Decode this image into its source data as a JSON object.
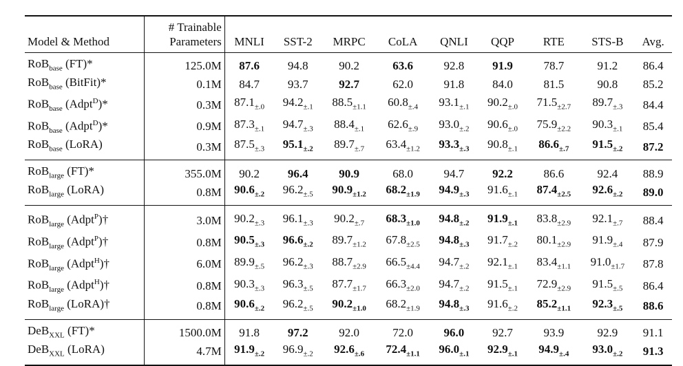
{
  "table": {
    "header": {
      "model": "Model & Method",
      "params": [
        "# Trainable",
        "Parameters"
      ],
      "tasks": [
        "MNLI",
        "SST-2",
        "MRPC",
        "CoLA",
        "QNLI",
        "QQP",
        "RTE",
        "STS-B",
        "Avg."
      ]
    },
    "groups": [
      [
        {
          "model": [
            {
              "t": "RoB"
            },
            {
              "t": "base",
              "s": "sub"
            },
            {
              "t": " (FT)*"
            }
          ],
          "params": "125.0M",
          "cells": [
            {
              "v": "87.6",
              "b": true
            },
            {
              "v": "94.8"
            },
            {
              "v": "90.2"
            },
            {
              "v": "63.6",
              "b": true
            },
            {
              "v": "92.8"
            },
            {
              "v": "91.9",
              "b": true
            },
            {
              "v": "78.7"
            },
            {
              "v": "91.2"
            },
            {
              "v": "86.4"
            }
          ]
        },
        {
          "model": [
            {
              "t": "RoB"
            },
            {
              "t": "base",
              "s": "sub"
            },
            {
              "t": " (BitFit)*"
            }
          ],
          "params": "0.1M",
          "cells": [
            {
              "v": "84.7"
            },
            {
              "v": "93.7"
            },
            {
              "v": "92.7",
              "b": true
            },
            {
              "v": "62.0"
            },
            {
              "v": "91.8"
            },
            {
              "v": "84.0"
            },
            {
              "v": "81.5"
            },
            {
              "v": "90.8"
            },
            {
              "v": "85.2"
            }
          ]
        },
        {
          "model": [
            {
              "t": "RoB"
            },
            {
              "t": "base",
              "s": "sub"
            },
            {
              "t": " (Adpt"
            },
            {
              "t": "D",
              "s": "sup"
            },
            {
              "t": ")*"
            }
          ],
          "params": "0.3M",
          "cells": [
            {
              "v": "87.1",
              "pm": "±.0"
            },
            {
              "v": "94.2",
              "pm": "±.1"
            },
            {
              "v": "88.5",
              "pm": "±1.1"
            },
            {
              "v": "60.8",
              "pm": "±.4"
            },
            {
              "v": "93.1",
              "pm": "±.1"
            },
            {
              "v": "90.2",
              "pm": "±.0"
            },
            {
              "v": "71.5",
              "pm": "±2.7"
            },
            {
              "v": "89.7",
              "pm": "±.3"
            },
            {
              "v": "84.4"
            }
          ]
        },
        {
          "model": [
            {
              "t": "RoB"
            },
            {
              "t": "base",
              "s": "sub"
            },
            {
              "t": " (Adpt"
            },
            {
              "t": "D",
              "s": "sup"
            },
            {
              "t": ")*"
            }
          ],
          "params": "0.9M",
          "cells": [
            {
              "v": "87.3",
              "pm": "±.1"
            },
            {
              "v": "94.7",
              "pm": "±.3"
            },
            {
              "v": "88.4",
              "pm": "±.1"
            },
            {
              "v": "62.6",
              "pm": "±.9"
            },
            {
              "v": "93.0",
              "pm": "±.2"
            },
            {
              "v": "90.6",
              "pm": "±.0"
            },
            {
              "v": "75.9",
              "pm": "±2.2"
            },
            {
              "v": "90.3",
              "pm": "±.1"
            },
            {
              "v": "85.4"
            }
          ]
        },
        {
          "model": [
            {
              "t": "RoB"
            },
            {
              "t": "base",
              "s": "sub"
            },
            {
              "t": " (LoRA)"
            }
          ],
          "params": "0.3M",
          "cells": [
            {
              "v": "87.5",
              "pm": "±.3"
            },
            {
              "v": "95.1",
              "pm": "±.2",
              "b": true
            },
            {
              "v": "89.7",
              "pm": "±.7"
            },
            {
              "v": "63.4",
              "pm": "±1.2"
            },
            {
              "v": "93.3",
              "pm": "±.3",
              "b": true
            },
            {
              "v": "90.8",
              "pm": "±.1"
            },
            {
              "v": "86.6",
              "pm": "±.7",
              "b": true
            },
            {
              "v": "91.5",
              "pm": "±.2",
              "b": true
            },
            {
              "v": "87.2",
              "b": true
            }
          ]
        }
      ],
      [
        {
          "model": [
            {
              "t": "RoB"
            },
            {
              "t": "large",
              "s": "sub"
            },
            {
              "t": " (FT)*"
            }
          ],
          "params": "355.0M",
          "cells": [
            {
              "v": "90.2"
            },
            {
              "v": "96.4",
              "b": true
            },
            {
              "v": "90.9",
              "b": true
            },
            {
              "v": "68.0"
            },
            {
              "v": "94.7"
            },
            {
              "v": "92.2",
              "b": true
            },
            {
              "v": "86.6"
            },
            {
              "v": "92.4"
            },
            {
              "v": "88.9"
            }
          ]
        },
        {
          "model": [
            {
              "t": "RoB"
            },
            {
              "t": "large",
              "s": "sub"
            },
            {
              "t": " (LoRA)"
            }
          ],
          "params": "0.8M",
          "cells": [
            {
              "v": "90.6",
              "pm": "±.2",
              "b": true
            },
            {
              "v": "96.2",
              "pm": "±.5"
            },
            {
              "v": "90.9",
              "pm": "±1.2",
              "b": true
            },
            {
              "v": "68.2",
              "pm": "±1.9",
              "b": true
            },
            {
              "v": "94.9",
              "pm": "±.3",
              "b": true
            },
            {
              "v": "91.6",
              "pm": "±.1"
            },
            {
              "v": "87.4",
              "pm": "±2.5",
              "b": true
            },
            {
              "v": "92.6",
              "pm": "±.2",
              "b": true
            },
            {
              "v": "89.0",
              "b": true
            }
          ]
        }
      ],
      [
        {
          "model": [
            {
              "t": "RoB"
            },
            {
              "t": "large",
              "s": "sub"
            },
            {
              "t": " (Adpt"
            },
            {
              "t": "P",
              "s": "sup"
            },
            {
              "t": ")†"
            }
          ],
          "params": "3.0M",
          "cells": [
            {
              "v": "90.2",
              "pm": "±.3"
            },
            {
              "v": "96.1",
              "pm": "±.3"
            },
            {
              "v": "90.2",
              "pm": "±.7"
            },
            {
              "v": "68.3",
              "pm": "±1.0",
              "b": true
            },
            {
              "v": "94.8",
              "pm": "±.2",
              "b": true
            },
            {
              "v": "91.9",
              "pm": "±.1",
              "b": true
            },
            {
              "v": "83.8",
              "pm": "±2.9"
            },
            {
              "v": "92.1",
              "pm": "±.7"
            },
            {
              "v": "88.4"
            }
          ]
        },
        {
          "model": [
            {
              "t": "RoB"
            },
            {
              "t": "large",
              "s": "sub"
            },
            {
              "t": " (Adpt"
            },
            {
              "t": "P",
              "s": "sup"
            },
            {
              "t": ")†"
            }
          ],
          "params": "0.8M",
          "cells": [
            {
              "v": "90.5",
              "pm": "±.3",
              "b": true
            },
            {
              "v": "96.6",
              "pm": "±.2",
              "b": true
            },
            {
              "v": "89.7",
              "pm": "±1.2"
            },
            {
              "v": "67.8",
              "pm": "±2.5"
            },
            {
              "v": "94.8",
              "pm": "±.3",
              "b": true
            },
            {
              "v": "91.7",
              "pm": "±.2"
            },
            {
              "v": "80.1",
              "pm": "±2.9"
            },
            {
              "v": "91.9",
              "pm": "±.4"
            },
            {
              "v": "87.9"
            }
          ]
        },
        {
          "model": [
            {
              "t": "RoB"
            },
            {
              "t": "large",
              "s": "sub"
            },
            {
              "t": " (Adpt"
            },
            {
              "t": "H",
              "s": "sup"
            },
            {
              "t": ")†"
            }
          ],
          "params": "6.0M",
          "cells": [
            {
              "v": "89.9",
              "pm": "±.5"
            },
            {
              "v": "96.2",
              "pm": "±.3"
            },
            {
              "v": "88.7",
              "pm": "±2.9"
            },
            {
              "v": "66.5",
              "pm": "±4.4"
            },
            {
              "v": "94.7",
              "pm": "±.2"
            },
            {
              "v": "92.1",
              "pm": "±.1"
            },
            {
              "v": "83.4",
              "pm": "±1.1"
            },
            {
              "v": "91.0",
              "pm": "±1.7"
            },
            {
              "v": "87.8"
            }
          ]
        },
        {
          "model": [
            {
              "t": "RoB"
            },
            {
              "t": "large",
              "s": "sub"
            },
            {
              "t": " (Adpt"
            },
            {
              "t": "H",
              "s": "sup"
            },
            {
              "t": ")†"
            }
          ],
          "params": "0.8M",
          "cells": [
            {
              "v": "90.3",
              "pm": "±.3"
            },
            {
              "v": "96.3",
              "pm": "±.5"
            },
            {
              "v": "87.7",
              "pm": "±1.7"
            },
            {
              "v": "66.3",
              "pm": "±2.0"
            },
            {
              "v": "94.7",
              "pm": "±.2"
            },
            {
              "v": "91.5",
              "pm": "±.1"
            },
            {
              "v": "72.9",
              "pm": "±2.9"
            },
            {
              "v": "91.5",
              "pm": "±.5"
            },
            {
              "v": "86.4"
            }
          ]
        },
        {
          "model": [
            {
              "t": "RoB"
            },
            {
              "t": "large",
              "s": "sub"
            },
            {
              "t": " (LoRA)†"
            }
          ],
          "params": "0.8M",
          "cells": [
            {
              "v": "90.6",
              "pm": "±.2",
              "b": true
            },
            {
              "v": "96.2",
              "pm": "±.5"
            },
            {
              "v": "90.2",
              "pm": "±1.0",
              "b": true
            },
            {
              "v": "68.2",
              "pm": "±1.9"
            },
            {
              "v": "94.8",
              "pm": "±.3",
              "b": true
            },
            {
              "v": "91.6",
              "pm": "±.2"
            },
            {
              "v": "85.2",
              "pm": "±1.1",
              "b": true
            },
            {
              "v": "92.3",
              "pm": "±.5",
              "b": true
            },
            {
              "v": "88.6",
              "b": true
            }
          ]
        }
      ],
      [
        {
          "model": [
            {
              "t": "DeB"
            },
            {
              "t": "XXL",
              "s": "sub"
            },
            {
              "t": " (FT)*"
            }
          ],
          "params": "1500.0M",
          "cells": [
            {
              "v": "91.8"
            },
            {
              "v": "97.2",
              "b": true
            },
            {
              "v": "92.0"
            },
            {
              "v": "72.0"
            },
            {
              "v": "96.0",
              "b": true
            },
            {
              "v": "92.7"
            },
            {
              "v": "93.9"
            },
            {
              "v": "92.9"
            },
            {
              "v": "91.1"
            }
          ]
        },
        {
          "model": [
            {
              "t": "DeB"
            },
            {
              "t": "XXL",
              "s": "sub"
            },
            {
              "t": " (LoRA)"
            }
          ],
          "params": "4.7M",
          "cells": [
            {
              "v": "91.9",
              "pm": "±.2",
              "b": true
            },
            {
              "v": "96.9",
              "pm": "±.2"
            },
            {
              "v": "92.6",
              "pm": "±.6",
              "b": true
            },
            {
              "v": "72.4",
              "pm": "±1.1",
              "b": true
            },
            {
              "v": "96.0",
              "pm": "±.1",
              "b": true
            },
            {
              "v": "92.9",
              "pm": "±.1",
              "b": true
            },
            {
              "v": "94.9",
              "pm": "±.4",
              "b": true
            },
            {
              "v": "93.0",
              "pm": "±.2",
              "b": true
            },
            {
              "v": "91.3",
              "b": true
            }
          ]
        }
      ]
    ]
  }
}
